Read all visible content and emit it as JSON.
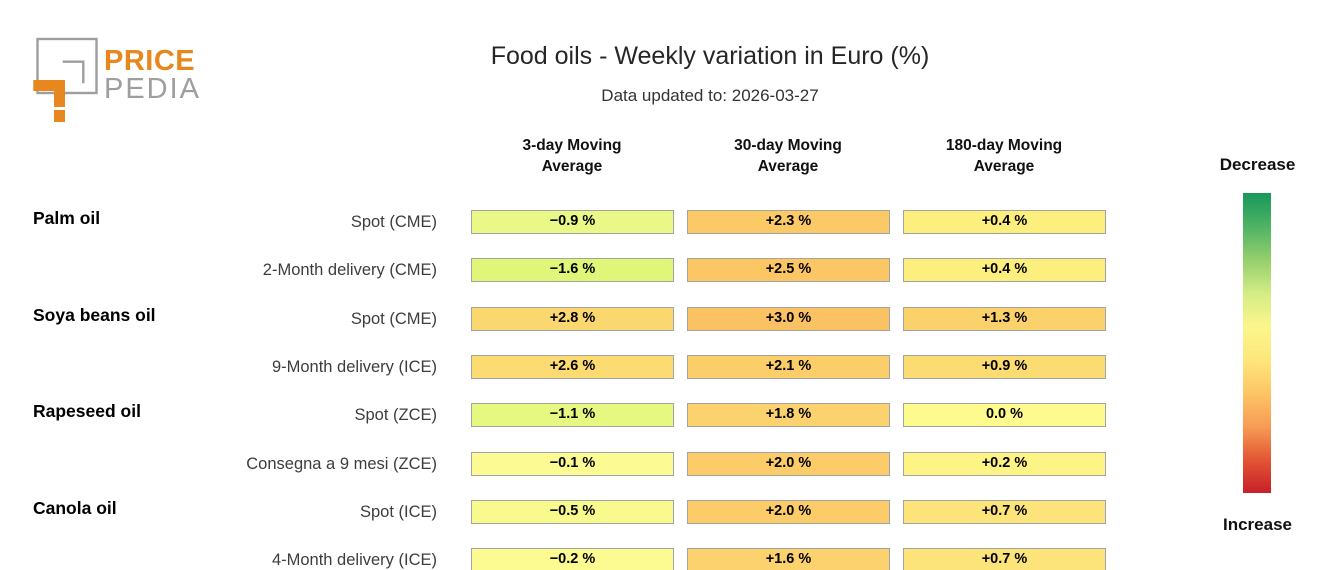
{
  "brand": {
    "name_top": "PRICE",
    "name_bottom": "PEDIA",
    "orange": "#E7871E",
    "gray": "#9E9E9E"
  },
  "header": {
    "title": "Food oils - Weekly variation in Euro (%)",
    "subtitle": "Data updated to: 2026-03-27"
  },
  "legend": {
    "decrease_label": "Decrease",
    "increase_label": "Increase",
    "gradient": [
      "#17985a",
      "#4eb265",
      "#94cf6c",
      "#d3ec85",
      "#fbf68c",
      "#fde77c",
      "#fdc565",
      "#f79c55",
      "#e25634",
      "#c81f28"
    ]
  },
  "chart_data": {
    "type": "heatmap",
    "title": "Food oils - Weekly variation in Euro (%)",
    "subtitle": "Data updated to: 2026-03-27",
    "value_unit": "% weekly variation in Euro",
    "columns": [
      "3-day Moving Average",
      "30-day Moving Average",
      "180-day Moving Average"
    ],
    "column_lines": [
      [
        "3-day Moving",
        "Average"
      ],
      [
        "30-day Moving",
        "Average"
      ],
      [
        "180-day Moving",
        "Average"
      ]
    ],
    "legend": {
      "top": "Decrease",
      "bottom": "Increase"
    },
    "rows": [
      {
        "group": "Palm oil",
        "label": "Spot (CME)",
        "values": [
          -0.9,
          2.3,
          0.4
        ],
        "display": [
          "−0.9 %",
          "+2.3 %",
          "+0.4 %"
        ],
        "colors": [
          "#eaf887",
          "#fbca67",
          "#fcef7d"
        ]
      },
      {
        "group": "",
        "label": "2-Month delivery (CME)",
        "values": [
          -1.6,
          2.5,
          0.4
        ],
        "display": [
          "−1.6 %",
          "+2.5 %",
          "+0.4 %"
        ],
        "colors": [
          "#e0f678",
          "#fbc663",
          "#fcef7d"
        ]
      },
      {
        "group": "Soya beans oil",
        "label": "Spot (CME)",
        "values": [
          2.8,
          3.0,
          1.3
        ],
        "display": [
          "+2.8 %",
          "+3.0 %",
          "+1.3 %"
        ],
        "colors": [
          "#fbd76f",
          "#fac263",
          "#fbd16b"
        ]
      },
      {
        "group": "",
        "label": "9-Month delivery (ICE)",
        "values": [
          2.6,
          2.1,
          0.9
        ],
        "display": [
          "+2.6 %",
          "+2.1 %",
          "+0.9 %"
        ],
        "colors": [
          "#fbdb72",
          "#fbce69",
          "#fbdc73"
        ]
      },
      {
        "group": "Rapeseed oil",
        "label": "Spot (ZCE)",
        "values": [
          -1.1,
          1.8,
          0.0
        ],
        "display": [
          "−1.1 %",
          "+1.8 %",
          "0.0 %"
        ],
        "colors": [
          "#e7f881",
          "#fbd26d",
          "#fdfa8e"
        ]
      },
      {
        "group": "",
        "label": "Consegna a 9 mesi (ZCE)",
        "values": [
          -0.1,
          2.0,
          0.2
        ],
        "display": [
          "−0.1 %",
          "+2.0 %",
          "+0.2 %"
        ],
        "colors": [
          "#fcfb93",
          "#fbcc68",
          "#fdf485"
        ]
      },
      {
        "group": "Canola oil",
        "label": "Spot (ICE)",
        "values": [
          -0.5,
          2.0,
          0.7
        ],
        "display": [
          "−0.5 %",
          "+2.0 %",
          "+0.7 %"
        ],
        "colors": [
          "#f8fa8d",
          "#fbcc68",
          "#fce37a"
        ]
      },
      {
        "group": "",
        "label": "4-Month delivery (ICE)",
        "values": [
          -0.2,
          1.6,
          0.7
        ],
        "display": [
          "−0.2 %",
          "+1.6 %",
          "+0.7 %"
        ],
        "colors": [
          "#fbfb91",
          "#fbd26d",
          "#fce37a"
        ]
      }
    ]
  }
}
